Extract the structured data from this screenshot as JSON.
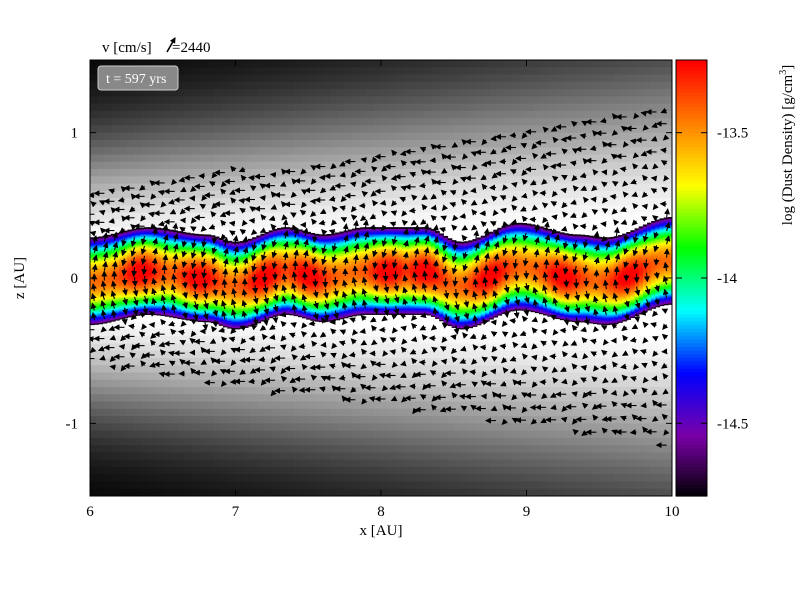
{
  "chart_data": {
    "type": "heatmap",
    "title": "",
    "xlabel": "x [AU]",
    "ylabel": "z [AU]",
    "xlim": [
      6,
      10
    ],
    "ylim": [
      -1.5,
      1.5
    ],
    "xticks": [
      "6",
      "7",
      "8",
      "9",
      "10"
    ],
    "xtick_values": [
      6,
      7,
      8,
      9,
      10
    ],
    "yticks": [
      "1",
      "0",
      "-1"
    ],
    "ytick_values": [
      1,
      0,
      -1
    ],
    "colorbar": {
      "label": "log (Dust Density) [g/cm",
      "label_sup": "3",
      "label_close": "]",
      "range": [
        -14.75,
        -13.25
      ],
      "ticks": [
        "-13.5",
        "-14",
        "-14.5"
      ],
      "tick_values": [
        -13.5,
        -14,
        -14.5
      ],
      "colormap": [
        "#000000",
        "#7a00a8",
        "#0000ff",
        "#00ffff",
        "#00ff00",
        "#ffff00",
        "#ff8000",
        "#ff0000"
      ]
    },
    "vector_legend": {
      "label": "v [cm/s]",
      "value_text": "=2440"
    },
    "annotation": "t = 597 yrs",
    "layer_center": {
      "x": [
        6.0,
        6.4,
        6.8,
        7.0,
        7.35,
        7.6,
        7.9,
        8.3,
        8.55,
        8.95,
        9.35,
        9.55,
        10.0
      ],
      "z": [
        -0.02,
        0.05,
        0.0,
        -0.05,
        0.05,
        0.0,
        0.05,
        0.05,
        -0.05,
        0.08,
        0.0,
        -0.02,
        0.12
      ]
    },
    "layer_halfwidth": 0.3,
    "density_peaks_x": [
      6.35,
      6.75,
      7.2,
      7.5,
      8.05,
      8.3,
      8.75,
      9.25,
      9.7
    ]
  }
}
